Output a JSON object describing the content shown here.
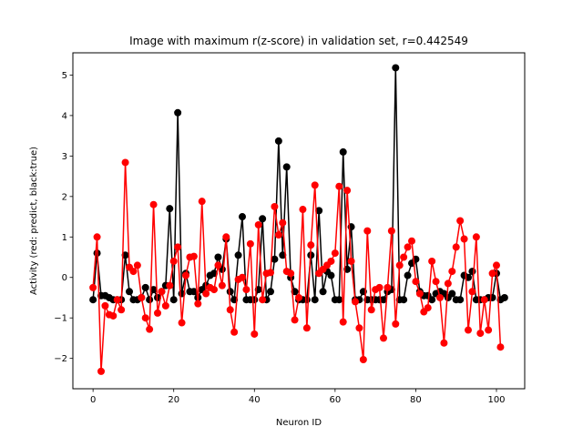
{
  "chart_data": {
    "type": "line",
    "title": "Image with maximum r(z-score) in validation set, r=0.442549",
    "xlabel": "Neuron ID",
    "ylabel": "Activity (red: predict, black:true)",
    "xlim": [
      -5,
      107
    ],
    "ylim": [
      -2.75,
      5.55
    ],
    "xticks": [
      0,
      20,
      40,
      60,
      80,
      100
    ],
    "yticks": [
      -2,
      -1,
      0,
      1,
      2,
      3,
      4,
      5
    ],
    "grid": false,
    "series": [
      {
        "name": "true",
        "color": "#000000",
        "values": [
          -0.55,
          0.6,
          -0.45,
          -0.45,
          -0.5,
          -0.55,
          -0.55,
          -0.55,
          0.55,
          -0.35,
          -0.55,
          -0.55,
          -0.5,
          -0.25,
          -0.55,
          -0.3,
          -0.5,
          -0.35,
          -0.2,
          1.7,
          -0.55,
          4.07,
          -0.4,
          0.1,
          -0.35,
          -0.35,
          -0.5,
          -0.3,
          -0.2,
          0.05,
          0.1,
          0.5,
          0.2,
          0.95,
          -0.35,
          -0.55,
          0.55,
          1.5,
          -0.55,
          -0.55,
          -0.55,
          -0.3,
          1.45,
          -0.55,
          -0.35,
          0.45,
          3.37,
          0.55,
          2.73,
          0.0,
          -0.35,
          -0.55,
          -0.55,
          -0.55,
          0.55,
          -0.55,
          1.65,
          -0.35,
          0.15,
          0.05,
          -0.55,
          -0.55,
          3.1,
          0.2,
          1.25,
          -0.55,
          -0.55,
          -0.35,
          -0.55,
          -0.55,
          -0.55,
          -0.55,
          -0.55,
          -0.35,
          -0.3,
          5.18,
          -0.55,
          -0.55,
          0.05,
          0.35,
          0.45,
          -0.35,
          -0.45,
          -0.45,
          -0.55,
          -0.4,
          -0.35,
          -0.4,
          -0.5,
          -0.4,
          -0.55,
          -0.55,
          0.05,
          0.0,
          0.15,
          -0.55,
          -0.55,
          -0.55,
          -0.5,
          -0.5,
          0.1,
          -0.55,
          -0.5
        ]
      },
      {
        "name": "predict",
        "color": "#ff0000",
        "values": [
          -0.25,
          1.0,
          -2.32,
          -0.7,
          -0.92,
          -0.95,
          -0.55,
          -0.8,
          2.84,
          0.25,
          0.15,
          0.3,
          -0.5,
          -1.0,
          -1.28,
          1.8,
          -0.88,
          -0.35,
          -0.7,
          -0.2,
          0.4,
          0.75,
          -1.12,
          0.05,
          0.5,
          0.52,
          -0.65,
          1.88,
          -0.4,
          -0.25,
          -0.3,
          0.3,
          -0.2,
          1.0,
          -0.8,
          -1.35,
          -0.05,
          0.0,
          -0.3,
          0.83,
          -1.4,
          1.3,
          -0.55,
          0.1,
          0.12,
          1.75,
          1.05,
          1.35,
          0.15,
          0.1,
          -1.05,
          -0.5,
          1.68,
          -1.25,
          0.8,
          2.28,
          0.1,
          0.2,
          0.3,
          0.4,
          0.6,
          2.25,
          -1.1,
          2.15,
          0.4,
          -0.6,
          -1.25,
          -2.03,
          1.15,
          -0.8,
          -0.3,
          -0.25,
          -1.5,
          -0.25,
          1.15,
          -1.15,
          0.3,
          0.5,
          0.75,
          0.9,
          -0.1,
          -0.4,
          -0.85,
          -0.75,
          0.4,
          -0.1,
          -0.5,
          -1.62,
          -0.15,
          0.15,
          0.75,
          1.4,
          0.95,
          -1.3,
          -0.35,
          1.0,
          -1.38,
          -0.55,
          -1.3,
          0.1,
          0.3,
          -1.72
        ]
      }
    ]
  }
}
